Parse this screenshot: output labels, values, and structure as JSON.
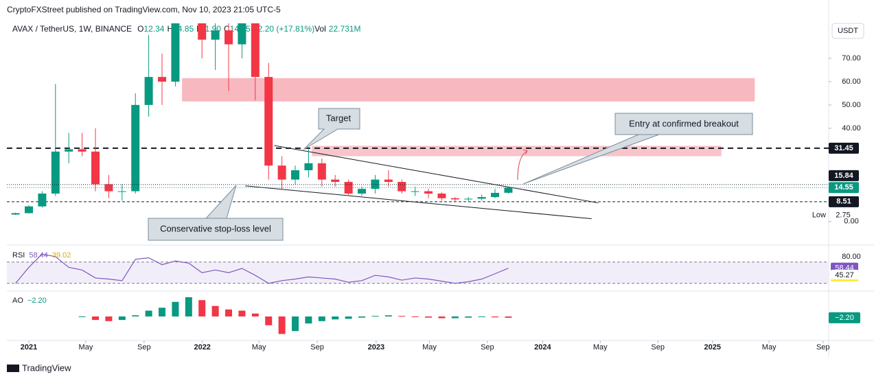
{
  "ui": {
    "publisher": "CryptoFXStreet published on TradingView.com, Nov 10, 2023 21:05 UTC-5",
    "brand": "TradingView",
    "currency": "USDT"
  },
  "chart_data": {
    "type": "candlestick",
    "title": "AVAX / TetherUS, 1W, BINANCE",
    "ohlc_legend": [
      "O",
      "12.34",
      "H",
      "14.85",
      "L",
      "11.90",
      "C",
      "14.55",
      "+2.20 (+17.81%)",
      "Vol",
      "22.731M"
    ],
    "x": [
      -4,
      0,
      4,
      8,
      12,
      16,
      20,
      24,
      28,
      32,
      36,
      40,
      44,
      48,
      52,
      56,
      60,
      64,
      68,
      72,
      76,
      80,
      84,
      88,
      92,
      96,
      100,
      104,
      108,
      112,
      116,
      120,
      124,
      128,
      132,
      136,
      140,
      144
    ],
    "open": [
      3.0,
      3.6,
      6.5,
      12,
      30,
      31,
      30,
      16,
      13,
      13,
      50,
      62,
      60,
      90,
      105,
      78,
      82,
      76,
      85,
      62,
      24,
      18,
      22,
      25,
      18,
      17,
      12,
      14,
      18,
      17,
      13,
      13,
      12,
      10,
      9.5,
      9.8,
      10.5,
      12.34
    ],
    "high": [
      3.8,
      7,
      13,
      59,
      38,
      38,
      40,
      20,
      16,
      55,
      80,
      72,
      100,
      130,
      112,
      95,
      90,
      100,
      90,
      68,
      28,
      24,
      31,
      27,
      20,
      18,
      15,
      20,
      22,
      18,
      15,
      14,
      12.5,
      10.5,
      10.5,
      11.5,
      14,
      14.85
    ],
    "low": [
      2.8,
      3.4,
      6,
      11,
      25,
      28,
      13,
      10,
      9,
      12,
      45,
      50,
      58,
      85,
      70,
      65,
      56,
      70,
      52,
      18,
      14,
      16,
      19,
      15,
      15,
      11,
      11,
      12,
      15,
      12,
      11,
      10,
      9,
      8.8,
      8.8,
      9,
      10,
      11.9
    ],
    "close": [
      3.6,
      6.5,
      12,
      30,
      31,
      30,
      16,
      13,
      13,
      50,
      62,
      60,
      90,
      105,
      78,
      82,
      76,
      85,
      62,
      24,
      18,
      22,
      25,
      18,
      17,
      12,
      14,
      18,
      17,
      13,
      13,
      12,
      10,
      9.5,
      9.8,
      10.5,
      12.3,
      14.55
    ],
    "xlim": [
      -6.6,
      240.2
    ],
    "xticks": [
      {
        "value": 0,
        "label": "2021"
      },
      {
        "value": 17.1,
        "label": "May"
      },
      {
        "value": 34.6,
        "label": "Sep"
      },
      {
        "value": 52.1,
        "label": "2022"
      },
      {
        "value": 69.1,
        "label": "May"
      },
      {
        "value": 86.6,
        "label": "Sep"
      },
      {
        "value": 104.3,
        "label": "2023"
      },
      {
        "value": 120.3,
        "label": "May"
      },
      {
        "value": 137.7,
        "label": "Sep"
      },
      {
        "value": 154.3,
        "label": "2024"
      },
      {
        "value": 171.6,
        "label": "May"
      },
      {
        "value": 188.9,
        "label": "Sep"
      },
      {
        "value": 205.3,
        "label": "2025"
      },
      {
        "value": 222.3,
        "label": "May"
      },
      {
        "value": 238.5,
        "label": "Sep"
      }
    ],
    "ylim": [
      -9.5,
      85
    ],
    "yticks": [
      {
        "value": 0,
        "label": "0.00"
      },
      {
        "value": 40,
        "label": "40.00"
      },
      {
        "value": 50,
        "label": "50.00"
      },
      {
        "value": 60,
        "label": "60.00"
      },
      {
        "value": 70,
        "label": "70.00"
      }
    ],
    "price_lines": [
      {
        "value": 31.45,
        "label": "31.45"
      },
      {
        "value": 8.51,
        "label": "8.51"
      }
    ],
    "badges": [
      {
        "value": 15.84,
        "label": "15.84"
      },
      {
        "value": 14.55,
        "label": "14.55"
      }
    ],
    "low_marker": {
      "name": "Low",
      "value": 2.75,
      "label": "2.75"
    },
    "zones": [
      {
        "x": [
          46,
          218
        ],
        "y": [
          51.5,
          61.5
        ]
      },
      {
        "x": [
          85,
          208
        ],
        "y": [
          28,
          32.5
        ]
      }
    ],
    "trend_lines": [
      {
        "x": [
          73.7,
          171
        ],
        "y": [
          32.6,
          8.0
        ]
      },
      {
        "x": [
          65,
          169
        ],
        "y": [
          15.3,
          1.2
        ]
      }
    ],
    "annotations": [
      "Target",
      "Entry at confirmed breakout",
      "Conservative stop-loss level"
    ],
    "rsi": {
      "name": "RSI",
      "legend": [
        "58.44",
        "39.02"
      ],
      "values": [
        30,
        60,
        85,
        80,
        60,
        55,
        40,
        38,
        35,
        75,
        78,
        65,
        72,
        68,
        50,
        55,
        50,
        58,
        45,
        30,
        35,
        38,
        42,
        40,
        38,
        32,
        35,
        45,
        42,
        36,
        40,
        38,
        34,
        30,
        33,
        38,
        48,
        58.44
      ],
      "ylim": [
        18,
        98
      ],
      "bands": [
        30,
        70
      ],
      "yticks": [
        {
          "value": 80,
          "label": "80.00"
        }
      ],
      "badges": [
        {
          "value": 58.44,
          "label": "58.44"
        },
        {
          "value": 45.27,
          "label": "45.27"
        }
      ]
    },
    "ao": {
      "name": "AO",
      "legend": "−2.20",
      "values": [
        null,
        null,
        null,
        null,
        null,
        -1,
        -6,
        -8,
        -6,
        2,
        10,
        15,
        25,
        33,
        28,
        18,
        12,
        10,
        5,
        -15,
        -30,
        -25,
        -12,
        -8,
        -5,
        -4,
        -2,
        1,
        2,
        1,
        -1,
        -2,
        -3,
        -3,
        -2,
        -1,
        -1.5,
        -2.2
      ],
      "ylim": [
        -40,
        40
      ],
      "badge": {
        "value": -2.2,
        "label": "−2.20"
      }
    }
  }
}
